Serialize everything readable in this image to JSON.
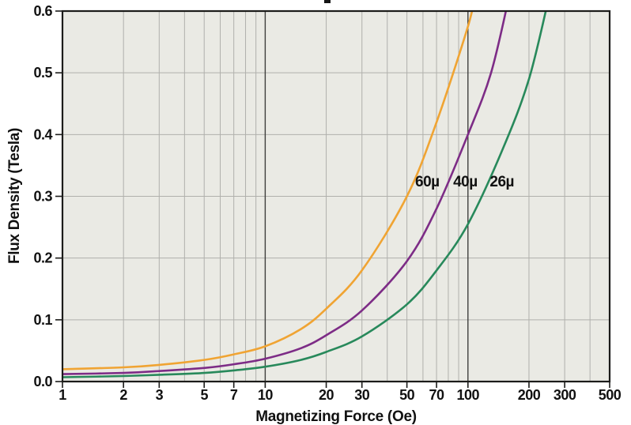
{
  "figure": {
    "description": "Flux density versus magnetizing force curves for three core permeabilities",
    "cropped_title_fragment_visible": true
  },
  "colors": {
    "page_bg": "#ffffff",
    "plot_bg": "#EAEAE4",
    "grid_minor": "#B0B0AC",
    "grid_major": "#3F3F3D",
    "border": "#1C1C1A",
    "text": "#111111"
  },
  "chart_data": {
    "type": "line",
    "x_scale": "log",
    "xlabel": "Magnetizing Force (Oe)",
    "ylabel": "Flux Density (Tesla)",
    "xlim": [
      1,
      500
    ],
    "ylim": [
      0,
      0.6
    ],
    "x_ticks": [
      1,
      2,
      3,
      5,
      7,
      10,
      20,
      30,
      50,
      70,
      100,
      200,
      300,
      500
    ],
    "y_ticks": [
      0.0,
      0.1,
      0.2,
      0.3,
      0.4,
      0.5,
      0.6
    ],
    "x_minor_gridlines": [
      2,
      3,
      4,
      5,
      6,
      7,
      8,
      9,
      20,
      30,
      40,
      50,
      60,
      70,
      80,
      90,
      200,
      300,
      400
    ],
    "x_major_gridlines": [
      10,
      100
    ],
    "grid": "on",
    "legend_position": "inline-labels",
    "series": [
      {
        "name": "60µ",
        "color": "#F0A433",
        "label": "60µ",
        "label_at": {
          "x": 63,
          "y": 0.325
        },
        "points": [
          [
            1,
            0.02
          ],
          [
            2,
            0.023
          ],
          [
            3,
            0.027
          ],
          [
            5,
            0.035
          ],
          [
            7,
            0.044
          ],
          [
            10,
            0.057
          ],
          [
            15,
            0.085
          ],
          [
            20,
            0.118
          ],
          [
            30,
            0.18
          ],
          [
            50,
            0.3
          ],
          [
            70,
            0.42
          ],
          [
            100,
            0.575
          ],
          [
            108,
            0.625
          ]
        ]
      },
      {
        "name": "40µ",
        "color": "#7D2C86",
        "label": "40µ",
        "label_at": {
          "x": 97,
          "y": 0.325
        },
        "points": [
          [
            1,
            0.012
          ],
          [
            2,
            0.014
          ],
          [
            3,
            0.017
          ],
          [
            5,
            0.022
          ],
          [
            7,
            0.028
          ],
          [
            10,
            0.037
          ],
          [
            15,
            0.054
          ],
          [
            20,
            0.075
          ],
          [
            30,
            0.115
          ],
          [
            50,
            0.195
          ],
          [
            70,
            0.28
          ],
          [
            100,
            0.4
          ],
          [
            130,
            0.5
          ],
          [
            160,
            0.625
          ]
        ]
      },
      {
        "name": "26µ",
        "color": "#28895B",
        "label": "26µ",
        "label_at": {
          "x": 147,
          "y": 0.325
        },
        "points": [
          [
            1,
            0.007
          ],
          [
            2,
            0.009
          ],
          [
            3,
            0.011
          ],
          [
            5,
            0.014
          ],
          [
            7,
            0.018
          ],
          [
            10,
            0.024
          ],
          [
            15,
            0.035
          ],
          [
            20,
            0.048
          ],
          [
            30,
            0.073
          ],
          [
            50,
            0.125
          ],
          [
            70,
            0.18
          ],
          [
            100,
            0.255
          ],
          [
            150,
            0.38
          ],
          [
            200,
            0.49
          ],
          [
            252,
            0.625
          ]
        ]
      }
    ]
  }
}
